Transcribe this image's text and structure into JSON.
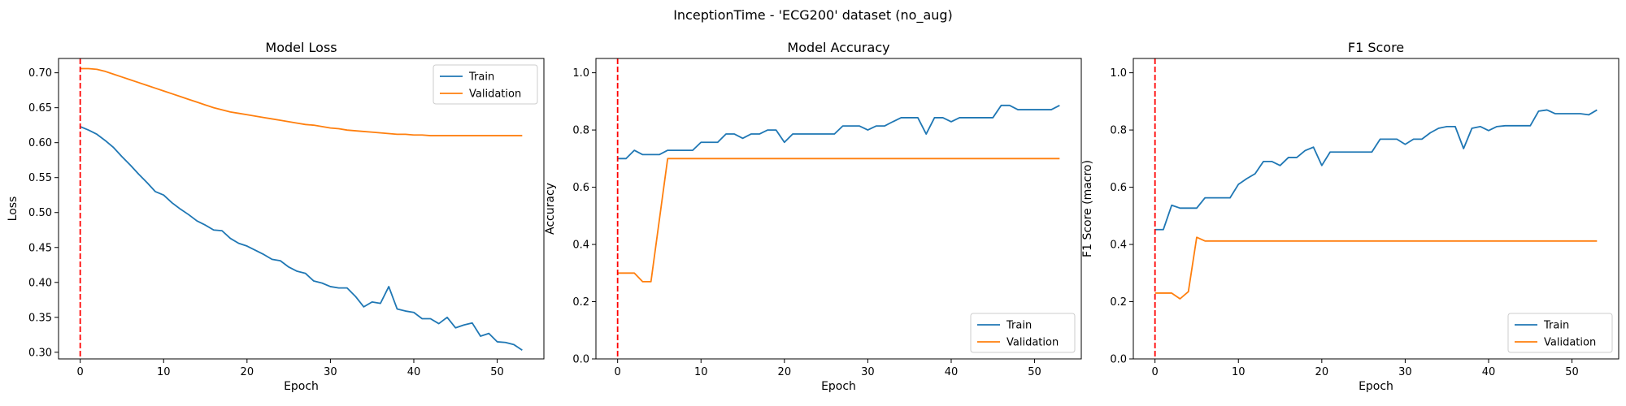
{
  "figure": {
    "suptitle": "InceptionTime - 'ECG200' dataset (no_aug)"
  },
  "chart_data": [
    {
      "type": "line",
      "title": "Model Loss",
      "xlabel": "Epoch",
      "ylabel": "Loss",
      "xlim": [
        -2.6,
        55.6
      ],
      "ylim": [
        0.2905,
        0.7205
      ],
      "xticks": [
        0,
        10,
        20,
        30,
        40,
        50
      ],
      "yticks": [
        0.3,
        0.35,
        0.4,
        0.45,
        0.5,
        0.55,
        0.6,
        0.65,
        0.7
      ],
      "ytick_format": 2,
      "legend_loc": "upper right",
      "vline": {
        "x": 0,
        "color": "#ff0000",
        "style": "dashed"
      },
      "x": [
        0,
        1,
        2,
        3,
        4,
        5,
        6,
        7,
        8,
        9,
        10,
        11,
        12,
        13,
        14,
        15,
        16,
        17,
        18,
        19,
        20,
        21,
        22,
        23,
        24,
        25,
        26,
        27,
        28,
        29,
        30,
        31,
        32,
        33,
        34,
        35,
        36,
        37,
        38,
        39,
        40,
        41,
        42,
        43,
        44,
        45,
        46,
        47,
        48,
        49,
        50,
        51,
        52,
        53
      ],
      "series": [
        {
          "name": "Train",
          "color": "#1f77b4",
          "values": [
            0.623,
            0.618,
            0.612,
            0.603,
            0.593,
            0.58,
            0.568,
            0.555,
            0.543,
            0.53,
            0.525,
            0.514,
            0.505,
            0.497,
            0.488,
            0.482,
            0.475,
            0.474,
            0.463,
            0.456,
            0.452,
            0.446,
            0.44,
            0.433,
            0.431,
            0.422,
            0.416,
            0.413,
            0.402,
            0.399,
            0.394,
            0.392,
            0.392,
            0.38,
            0.365,
            0.372,
            0.37,
            0.394,
            0.362,
            0.359,
            0.357,
            0.348,
            0.348,
            0.341,
            0.35,
            0.335,
            0.339,
            0.342,
            0.323,
            0.327,
            0.315,
            0.314,
            0.311,
            0.303
          ]
        },
        {
          "name": "Validation",
          "color": "#ff7f0e",
          "values": [
            0.706,
            0.706,
            0.705,
            0.702,
            0.698,
            0.694,
            0.69,
            0.686,
            0.682,
            0.678,
            0.674,
            0.67,
            0.666,
            0.662,
            0.658,
            0.654,
            0.65,
            0.647,
            0.644,
            0.642,
            0.64,
            0.638,
            0.636,
            0.634,
            0.632,
            0.63,
            0.628,
            0.626,
            0.625,
            0.623,
            0.621,
            0.62,
            0.618,
            0.617,
            0.616,
            0.615,
            0.614,
            0.613,
            0.612,
            0.612,
            0.611,
            0.611,
            0.61,
            0.61,
            0.61,
            0.61,
            0.61,
            0.61,
            0.61,
            0.61,
            0.61,
            0.61,
            0.61,
            0.61
          ]
        }
      ]
    },
    {
      "type": "line",
      "title": "Model Accuracy",
      "xlabel": "Epoch",
      "ylabel": "Accuracy",
      "xlim": [
        -2.6,
        55.6
      ],
      "ylim": [
        0.0,
        1.05
      ],
      "xticks": [
        0,
        10,
        20,
        30,
        40,
        50
      ],
      "yticks": [
        0.0,
        0.2,
        0.4,
        0.6,
        0.8,
        1.0
      ],
      "ytick_format": 1,
      "legend_loc": "lower right",
      "vline": {
        "x": 0,
        "color": "#ff0000",
        "style": "dashed"
      },
      "x": [
        0,
        1,
        2,
        3,
        4,
        5,
        6,
        7,
        8,
        9,
        10,
        11,
        12,
        13,
        14,
        15,
        16,
        17,
        18,
        19,
        20,
        21,
        22,
        23,
        24,
        25,
        26,
        27,
        28,
        29,
        30,
        31,
        32,
        33,
        34,
        35,
        36,
        37,
        38,
        39,
        40,
        41,
        42,
        43,
        44,
        45,
        46,
        47,
        48,
        49,
        50,
        51,
        52,
        53
      ],
      "series": [
        {
          "name": "Train",
          "color": "#1f77b4",
          "values": [
            0.7,
            0.7,
            0.729,
            0.714,
            0.714,
            0.714,
            0.729,
            0.729,
            0.729,
            0.729,
            0.757,
            0.757,
            0.757,
            0.786,
            0.786,
            0.771,
            0.786,
            0.786,
            0.8,
            0.8,
            0.757,
            0.786,
            0.786,
            0.786,
            0.786,
            0.786,
            0.786,
            0.814,
            0.814,
            0.814,
            0.8,
            0.814,
            0.814,
            0.829,
            0.843,
            0.843,
            0.843,
            0.786,
            0.843,
            0.843,
            0.829,
            0.843,
            0.843,
            0.843,
            0.843,
            0.843,
            0.886,
            0.886,
            0.871,
            0.871,
            0.871,
            0.871,
            0.871,
            0.886
          ]
        },
        {
          "name": "Validation",
          "color": "#ff7f0e",
          "values": [
            0.3,
            0.3,
            0.3,
            0.27,
            0.27,
            0.485,
            0.7,
            0.7,
            0.7,
            0.7,
            0.7,
            0.7,
            0.7,
            0.7,
            0.7,
            0.7,
            0.7,
            0.7,
            0.7,
            0.7,
            0.7,
            0.7,
            0.7,
            0.7,
            0.7,
            0.7,
            0.7,
            0.7,
            0.7,
            0.7,
            0.7,
            0.7,
            0.7,
            0.7,
            0.7,
            0.7,
            0.7,
            0.7,
            0.7,
            0.7,
            0.7,
            0.7,
            0.7,
            0.7,
            0.7,
            0.7,
            0.7,
            0.7,
            0.7,
            0.7,
            0.7,
            0.7,
            0.7,
            0.7
          ]
        }
      ]
    },
    {
      "type": "line",
      "title": "F1 Score",
      "xlabel": "Epoch",
      "ylabel": "F1 Score (macro)",
      "xlim": [
        -2.6,
        55.6
      ],
      "ylim": [
        0.0,
        1.05
      ],
      "xticks": [
        0,
        10,
        20,
        30,
        40,
        50
      ],
      "yticks": [
        0.0,
        0.2,
        0.4,
        0.6,
        0.8,
        1.0
      ],
      "ytick_format": 1,
      "legend_loc": "lower right",
      "vline": {
        "x": 0,
        "color": "#ff0000",
        "style": "dashed"
      },
      "x": [
        0,
        1,
        2,
        3,
        4,
        5,
        6,
        7,
        8,
        9,
        10,
        11,
        12,
        13,
        14,
        15,
        16,
        17,
        18,
        19,
        20,
        21,
        22,
        23,
        24,
        25,
        26,
        27,
        28,
        29,
        30,
        31,
        32,
        33,
        34,
        35,
        36,
        37,
        38,
        39,
        40,
        41,
        42,
        43,
        44,
        45,
        46,
        47,
        48,
        49,
        50,
        51,
        52,
        53
      ],
      "series": [
        {
          "name": "Train",
          "color": "#1f77b4",
          "values": [
            0.452,
            0.452,
            0.537,
            0.527,
            0.527,
            0.527,
            0.563,
            0.563,
            0.563,
            0.563,
            0.61,
            0.63,
            0.647,
            0.69,
            0.69,
            0.676,
            0.704,
            0.704,
            0.728,
            0.74,
            0.676,
            0.723,
            0.723,
            0.723,
            0.723,
            0.723,
            0.723,
            0.768,
            0.768,
            0.768,
            0.75,
            0.768,
            0.768,
            0.79,
            0.806,
            0.812,
            0.812,
            0.735,
            0.806,
            0.812,
            0.798,
            0.812,
            0.815,
            0.815,
            0.815,
            0.815,
            0.866,
            0.87,
            0.857,
            0.857,
            0.857,
            0.857,
            0.853,
            0.87
          ]
        },
        {
          "name": "Validation",
          "color": "#ff7f0e",
          "values": [
            0.23,
            0.23,
            0.23,
            0.21,
            0.235,
            0.425,
            0.412,
            0.412,
            0.412,
            0.412,
            0.412,
            0.412,
            0.412,
            0.412,
            0.412,
            0.412,
            0.412,
            0.412,
            0.412,
            0.412,
            0.412,
            0.412,
            0.412,
            0.412,
            0.412,
            0.412,
            0.412,
            0.412,
            0.412,
            0.412,
            0.412,
            0.412,
            0.412,
            0.412,
            0.412,
            0.412,
            0.412,
            0.412,
            0.412,
            0.412,
            0.412,
            0.412,
            0.412,
            0.412,
            0.412,
            0.412,
            0.412,
            0.412,
            0.412,
            0.412,
            0.412,
            0.412,
            0.412,
            0.412
          ]
        }
      ]
    }
  ]
}
